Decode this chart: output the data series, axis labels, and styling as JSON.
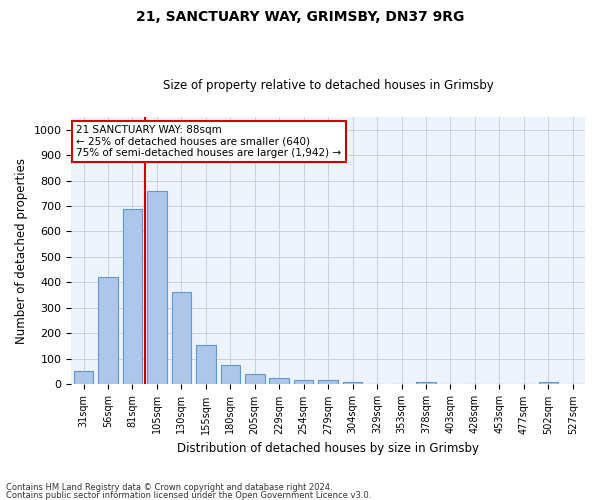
{
  "title1": "21, SANCTUARY WAY, GRIMSBY, DN37 9RG",
  "title2": "Size of property relative to detached houses in Grimsby",
  "xlabel": "Distribution of detached houses by size in Grimsby",
  "ylabel": "Number of detached properties",
  "categories": [
    "31sqm",
    "56sqm",
    "81sqm",
    "105sqm",
    "130sqm",
    "155sqm",
    "180sqm",
    "205sqm",
    "229sqm",
    "254sqm",
    "279sqm",
    "304sqm",
    "329sqm",
    "353sqm",
    "378sqm",
    "403sqm",
    "428sqm",
    "453sqm",
    "477sqm",
    "502sqm",
    "527sqm"
  ],
  "values": [
    52,
    423,
    690,
    760,
    362,
    155,
    75,
    40,
    27,
    18,
    18,
    10,
    0,
    0,
    10,
    0,
    0,
    0,
    0,
    10,
    0
  ],
  "bar_color": "#aec6e8",
  "bar_edge_color": "#5b9bd5",
  "vline_x": 2.5,
  "vline_color": "#cc0000",
  "annotation_text": "21 SANCTUARY WAY: 88sqm\n← 25% of detached houses are smaller (640)\n75% of semi-detached houses are larger (1,942) →",
  "annotation_box_color": "#ffffff",
  "annotation_box_edge_color": "#cc0000",
  "ylim": [
    0,
    1050
  ],
  "yticks": [
    0,
    100,
    200,
    300,
    400,
    500,
    600,
    700,
    800,
    900,
    1000
  ],
  "footnote1": "Contains HM Land Registry data © Crown copyright and database right 2024.",
  "footnote2": "Contains public sector information licensed under the Open Government Licence v3.0.",
  "background_color": "#eef2fa"
}
